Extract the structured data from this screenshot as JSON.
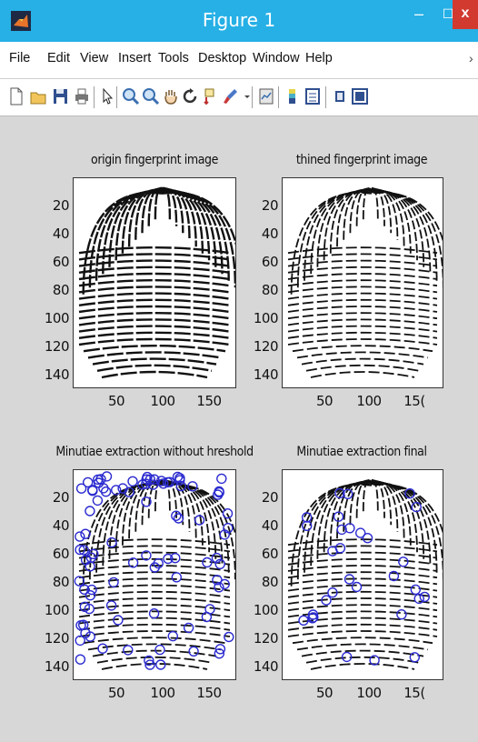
{
  "window": {
    "title": "Figure 1",
    "minimize_glyph": "–",
    "maximize_glyph": "☐",
    "close_glyph": "x",
    "app_icon": "matlab-icon"
  },
  "menu": {
    "items": [
      "File",
      "Edit",
      "View",
      "Insert",
      "Tools",
      "Desktop",
      "Window",
      "Help"
    ],
    "overflow": "›"
  },
  "toolbar": {
    "icons": [
      "new-figure-icon",
      "open-file-icon",
      "save-icon",
      "print-icon",
      "pointer-icon",
      "zoom-in-icon",
      "zoom-out-icon",
      "pan-icon",
      "rotate-icon",
      "data-cursor-icon",
      "brush-icon",
      "dropdown-arrow-icon",
      "link-plot-icon",
      "colorbar-icon",
      "legend-icon",
      "hide-plot-tools-icon",
      "show-plot-tools-icon"
    ]
  },
  "plots": [
    {
      "title": "origin fingerprint image",
      "yticks": [
        "20",
        "40",
        "60",
        "80",
        "100",
        "120",
        "140"
      ],
      "xticks": [
        "50",
        "100",
        "150"
      ],
      "markers": false
    },
    {
      "title": "thined fingerprint image",
      "yticks": [
        "20",
        "40",
        "60",
        "80",
        "100",
        "120",
        "140"
      ],
      "xticks": [
        "50",
        "100",
        "15("
      ],
      "markers": false
    },
    {
      "title": "Minutiae extraction without hreshold",
      "yticks": [
        "20",
        "40",
        "60",
        "80",
        "100",
        "120",
        "140"
      ],
      "xticks": [
        "50",
        "100",
        "150"
      ],
      "markers": true
    },
    {
      "title": "Minutiae extraction final",
      "yticks": [
        "20",
        "40",
        "60",
        "80",
        "100",
        "120",
        "140"
      ],
      "xticks": [
        "50",
        "100",
        "15("
      ],
      "markers": true
    }
  ],
  "colors": {
    "titlebar": "#26b0e6",
    "figure_bg": "#d7d7d7",
    "close": "#d23a30",
    "marker": "#2b2bd0"
  }
}
